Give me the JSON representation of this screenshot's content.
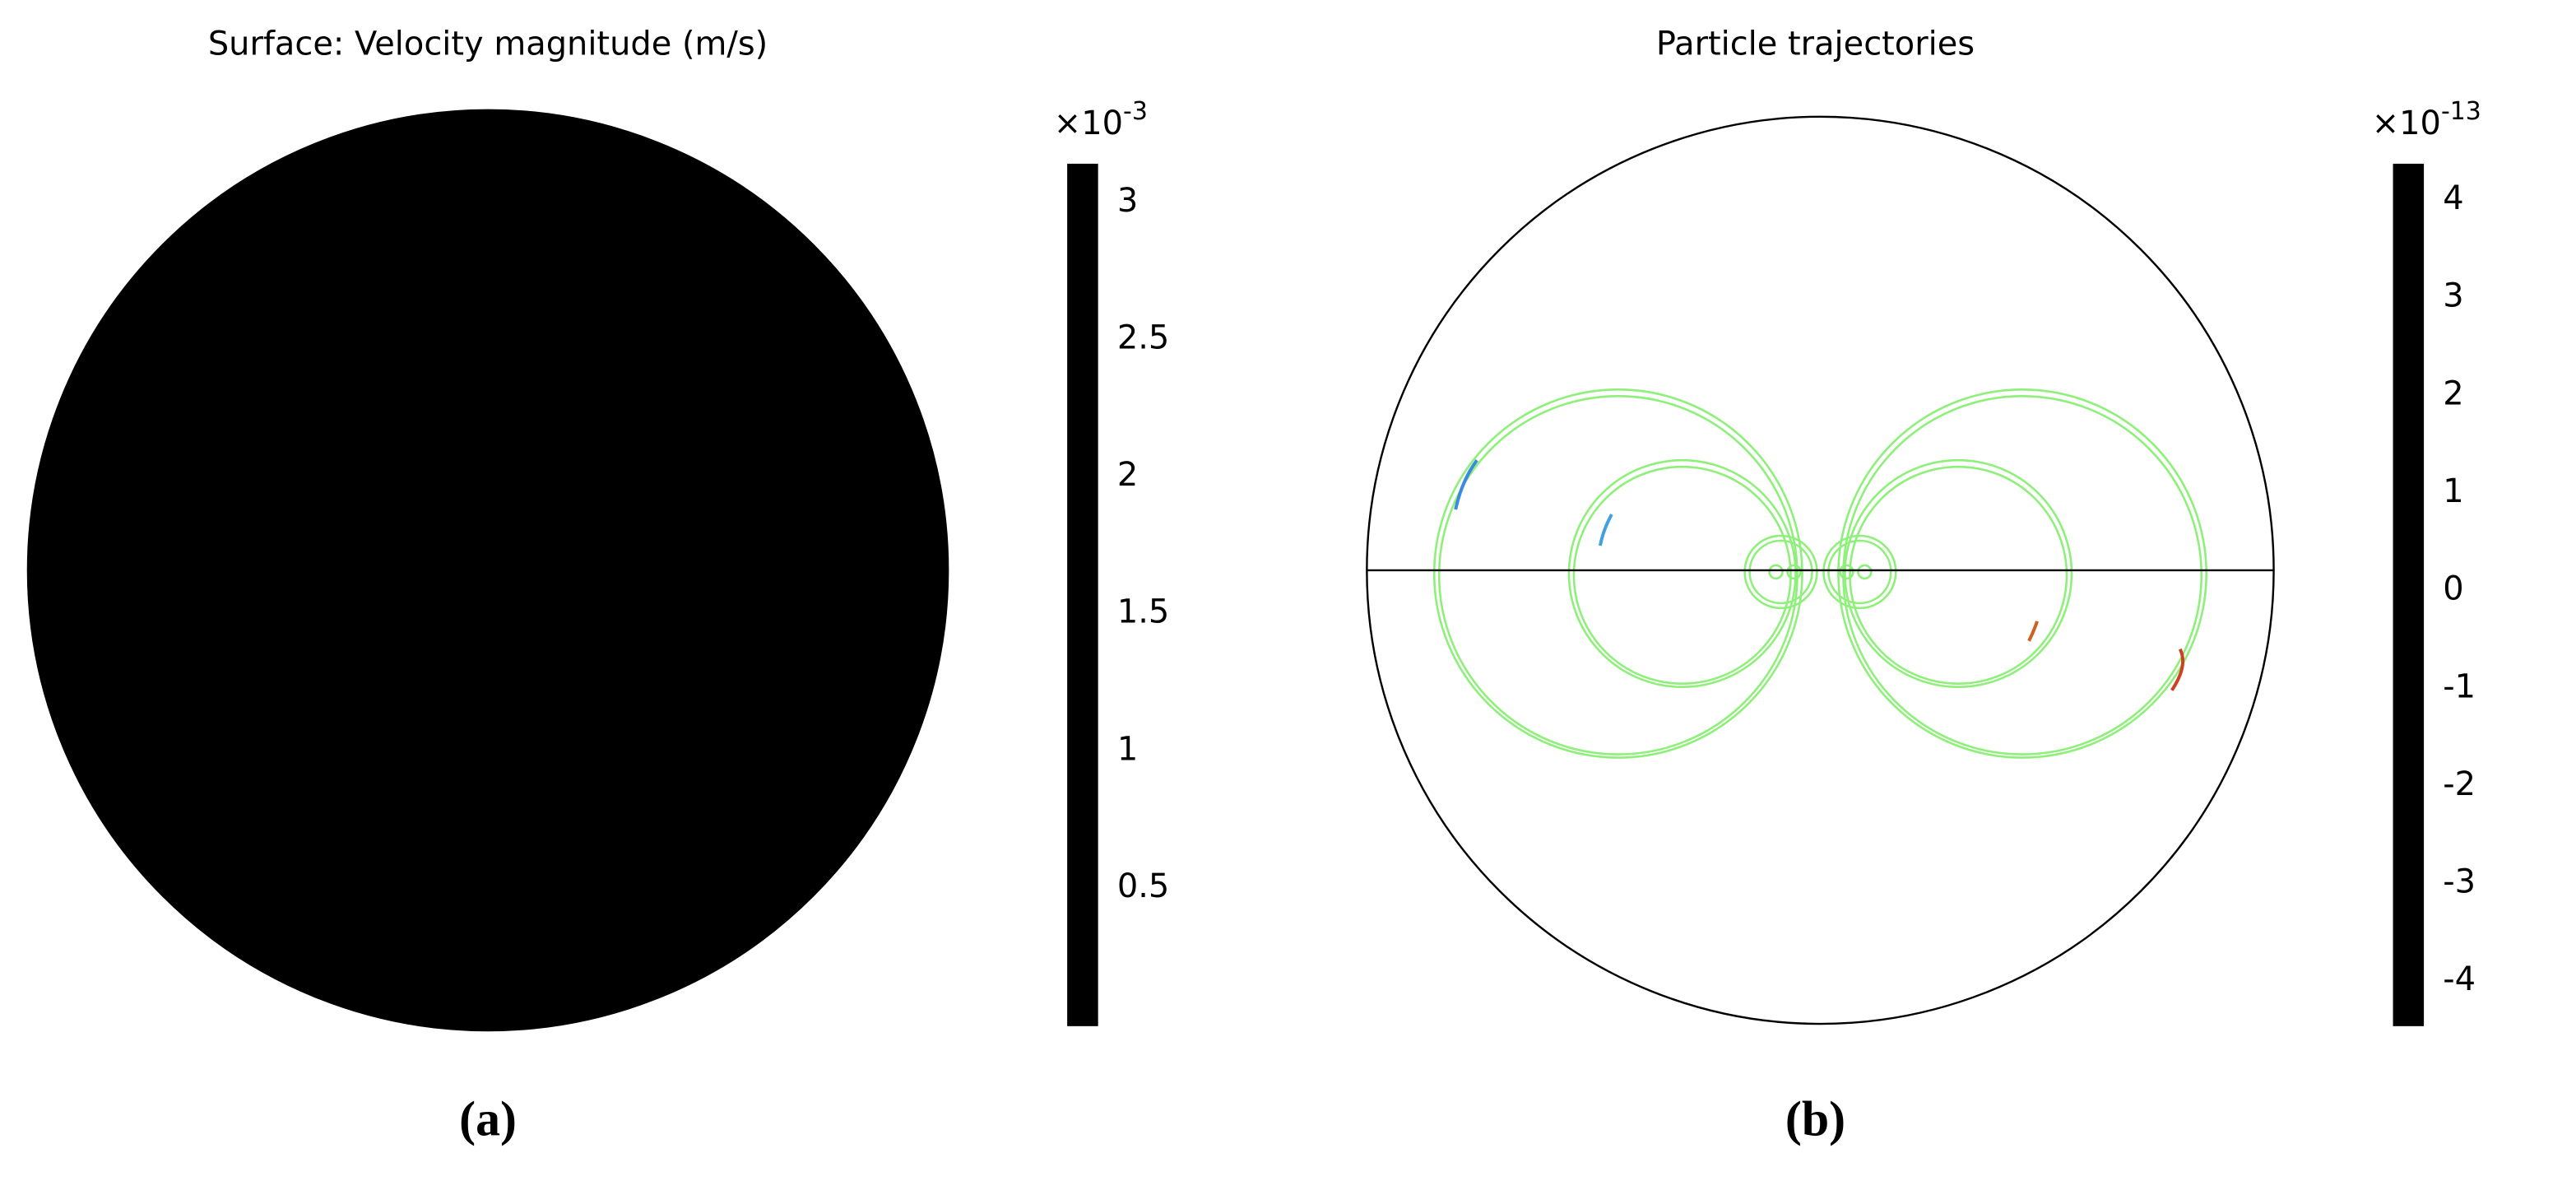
{
  "chart_data": [
    {
      "type": "surface",
      "title": "Surface: Velocity magnitude (m/s)",
      "colormap": "jet",
      "values": [
        0,
        3.1
      ],
      "colorbar_prefix": "×10",
      "colorbar_exponent": "-3",
      "clim": [
        0,
        3.14
      ],
      "cticks": [
        0.5,
        1,
        1.5,
        2,
        2.5,
        3
      ],
      "caption": "(a)"
    },
    {
      "type": "trajectories",
      "title": "Particle trajectories",
      "colormap": "jet",
      "colorbar_prefix": "×10",
      "colorbar_exponent": "-13",
      "clim": [
        -4.45,
        4.37
      ],
      "cticks": [
        -4,
        -3,
        -2,
        -1,
        0,
        1,
        2,
        3,
        4
      ],
      "caption": "(b)"
    }
  ]
}
